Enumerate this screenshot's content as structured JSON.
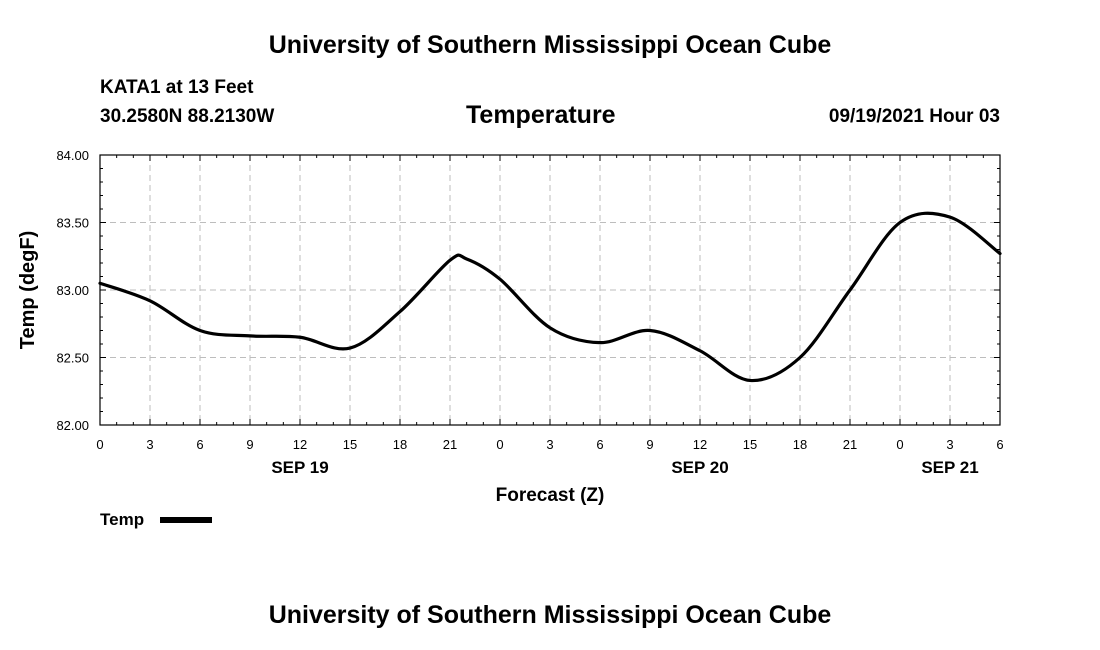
{
  "header": {
    "title": "University of Southern Mississippi Ocean Cube",
    "station": "KATA1 at 13 Feet",
    "coords": "30.2580N  88.2130W",
    "timestamp": "09/19/2021 Hour 03"
  },
  "footer": {
    "title": "University of Southern Mississippi Ocean Cube"
  },
  "chart_data": {
    "type": "line",
    "title": "Temperature",
    "xlabel": "Forecast (Z)",
    "ylabel": "Temp (degF)",
    "ylim": [
      82.0,
      84.0
    ],
    "yticks": [
      "82.00",
      "82.50",
      "83.00",
      "83.50",
      "84.00"
    ],
    "xlim": [
      0,
      54
    ],
    "xticks": [
      "0",
      "3",
      "6",
      "9",
      "12",
      "15",
      "18",
      "21",
      "0",
      "3",
      "6",
      "9",
      "12",
      "15",
      "18",
      "21",
      "0",
      "3",
      "6"
    ],
    "date_labels": [
      {
        "label": "SEP 19",
        "at": 12
      },
      {
        "label": "SEP 20",
        "at": 36
      },
      {
        "label": "SEP 21",
        "at": 51
      }
    ],
    "grid": true,
    "legend": "bottom-left",
    "series": [
      {
        "name": "Temp",
        "color": "#000000",
        "x": [
          0,
          3,
          6,
          9,
          12,
          15,
          18,
          21,
          22,
          24,
          27,
          30,
          33,
          36,
          39,
          42,
          45,
          48,
          51,
          54
        ],
        "y": [
          83.05,
          82.92,
          82.7,
          82.66,
          82.65,
          82.57,
          82.84,
          83.22,
          83.23,
          83.08,
          82.72,
          82.61,
          82.7,
          82.55,
          82.33,
          82.5,
          83.0,
          83.5,
          83.54,
          83.27
        ]
      }
    ]
  }
}
